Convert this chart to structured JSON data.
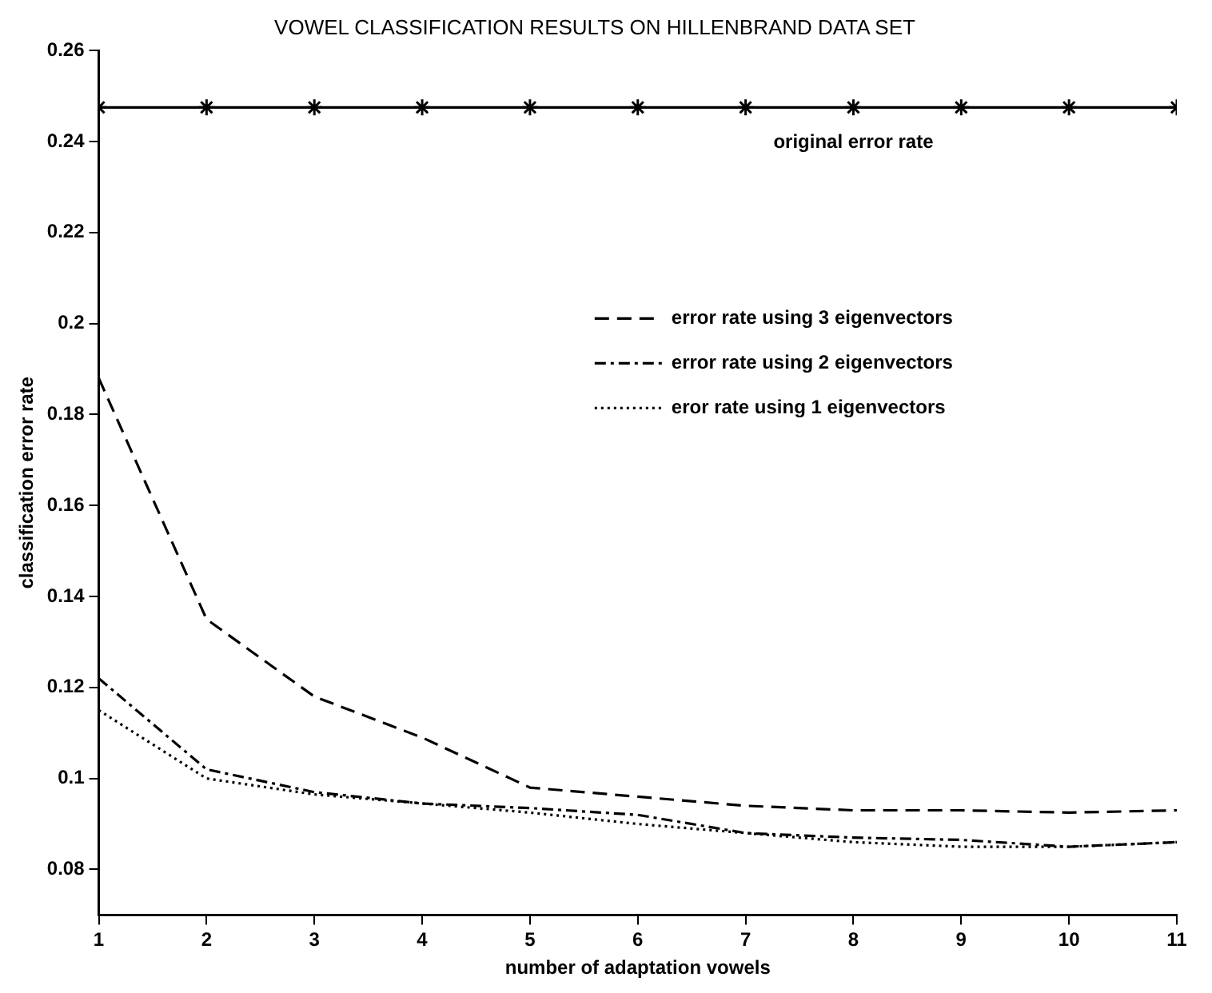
{
  "chart_data": {
    "type": "line",
    "title": "VOWEL CLASSIFICATION RESULTS ON HILLENBRAND DATA SET",
    "xlabel": "number of adaptation vowels",
    "ylabel": "classification error rate",
    "x": [
      1,
      2,
      3,
      4,
      5,
      6,
      7,
      8,
      9,
      10,
      11
    ],
    "series": [
      {
        "name": "original error rate",
        "color": "#000000",
        "marker": "cross",
        "line_style": "solid",
        "values": [
          0.2475,
          0.2475,
          0.2475,
          0.2475,
          0.2475,
          0.2475,
          0.2475,
          0.2475,
          0.2475,
          0.2475,
          0.2475
        ]
      },
      {
        "name": "error rate using 3 eigenvectors",
        "color": "#000000",
        "marker": "none",
        "line_style": "dashed",
        "values": [
          0.188,
          0.135,
          0.118,
          0.109,
          0.098,
          0.096,
          0.094,
          0.093,
          0.093,
          0.0925,
          0.093
        ]
      },
      {
        "name": "error rate using 2 eigenvectors",
        "color": "#000000",
        "marker": "none",
        "line_style": "dashdot",
        "values": [
          0.122,
          0.102,
          0.097,
          0.0945,
          0.0935,
          0.092,
          0.088,
          0.087,
          0.0865,
          0.085,
          0.086
        ]
      },
      {
        "name": "eror rate using 1 eigenvectors",
        "color": "#000000",
        "marker": "none",
        "line_style": "dotted",
        "values": [
          0.115,
          0.1,
          0.0965,
          0.0945,
          0.0925,
          0.09,
          0.088,
          0.086,
          0.085,
          0.085,
          0.086
        ]
      }
    ],
    "xlim": [
      1,
      11
    ],
    "xticks": [
      1,
      2,
      3,
      4,
      5,
      6,
      7,
      8,
      9,
      10,
      11
    ],
    "ylim": [
      0.07,
      0.26
    ],
    "yticks": [
      0.08,
      0.1,
      0.12,
      0.14,
      0.16,
      0.18,
      0.2,
      0.22,
      0.24,
      0.26
    ],
    "grid": false,
    "legend": "top right"
  }
}
